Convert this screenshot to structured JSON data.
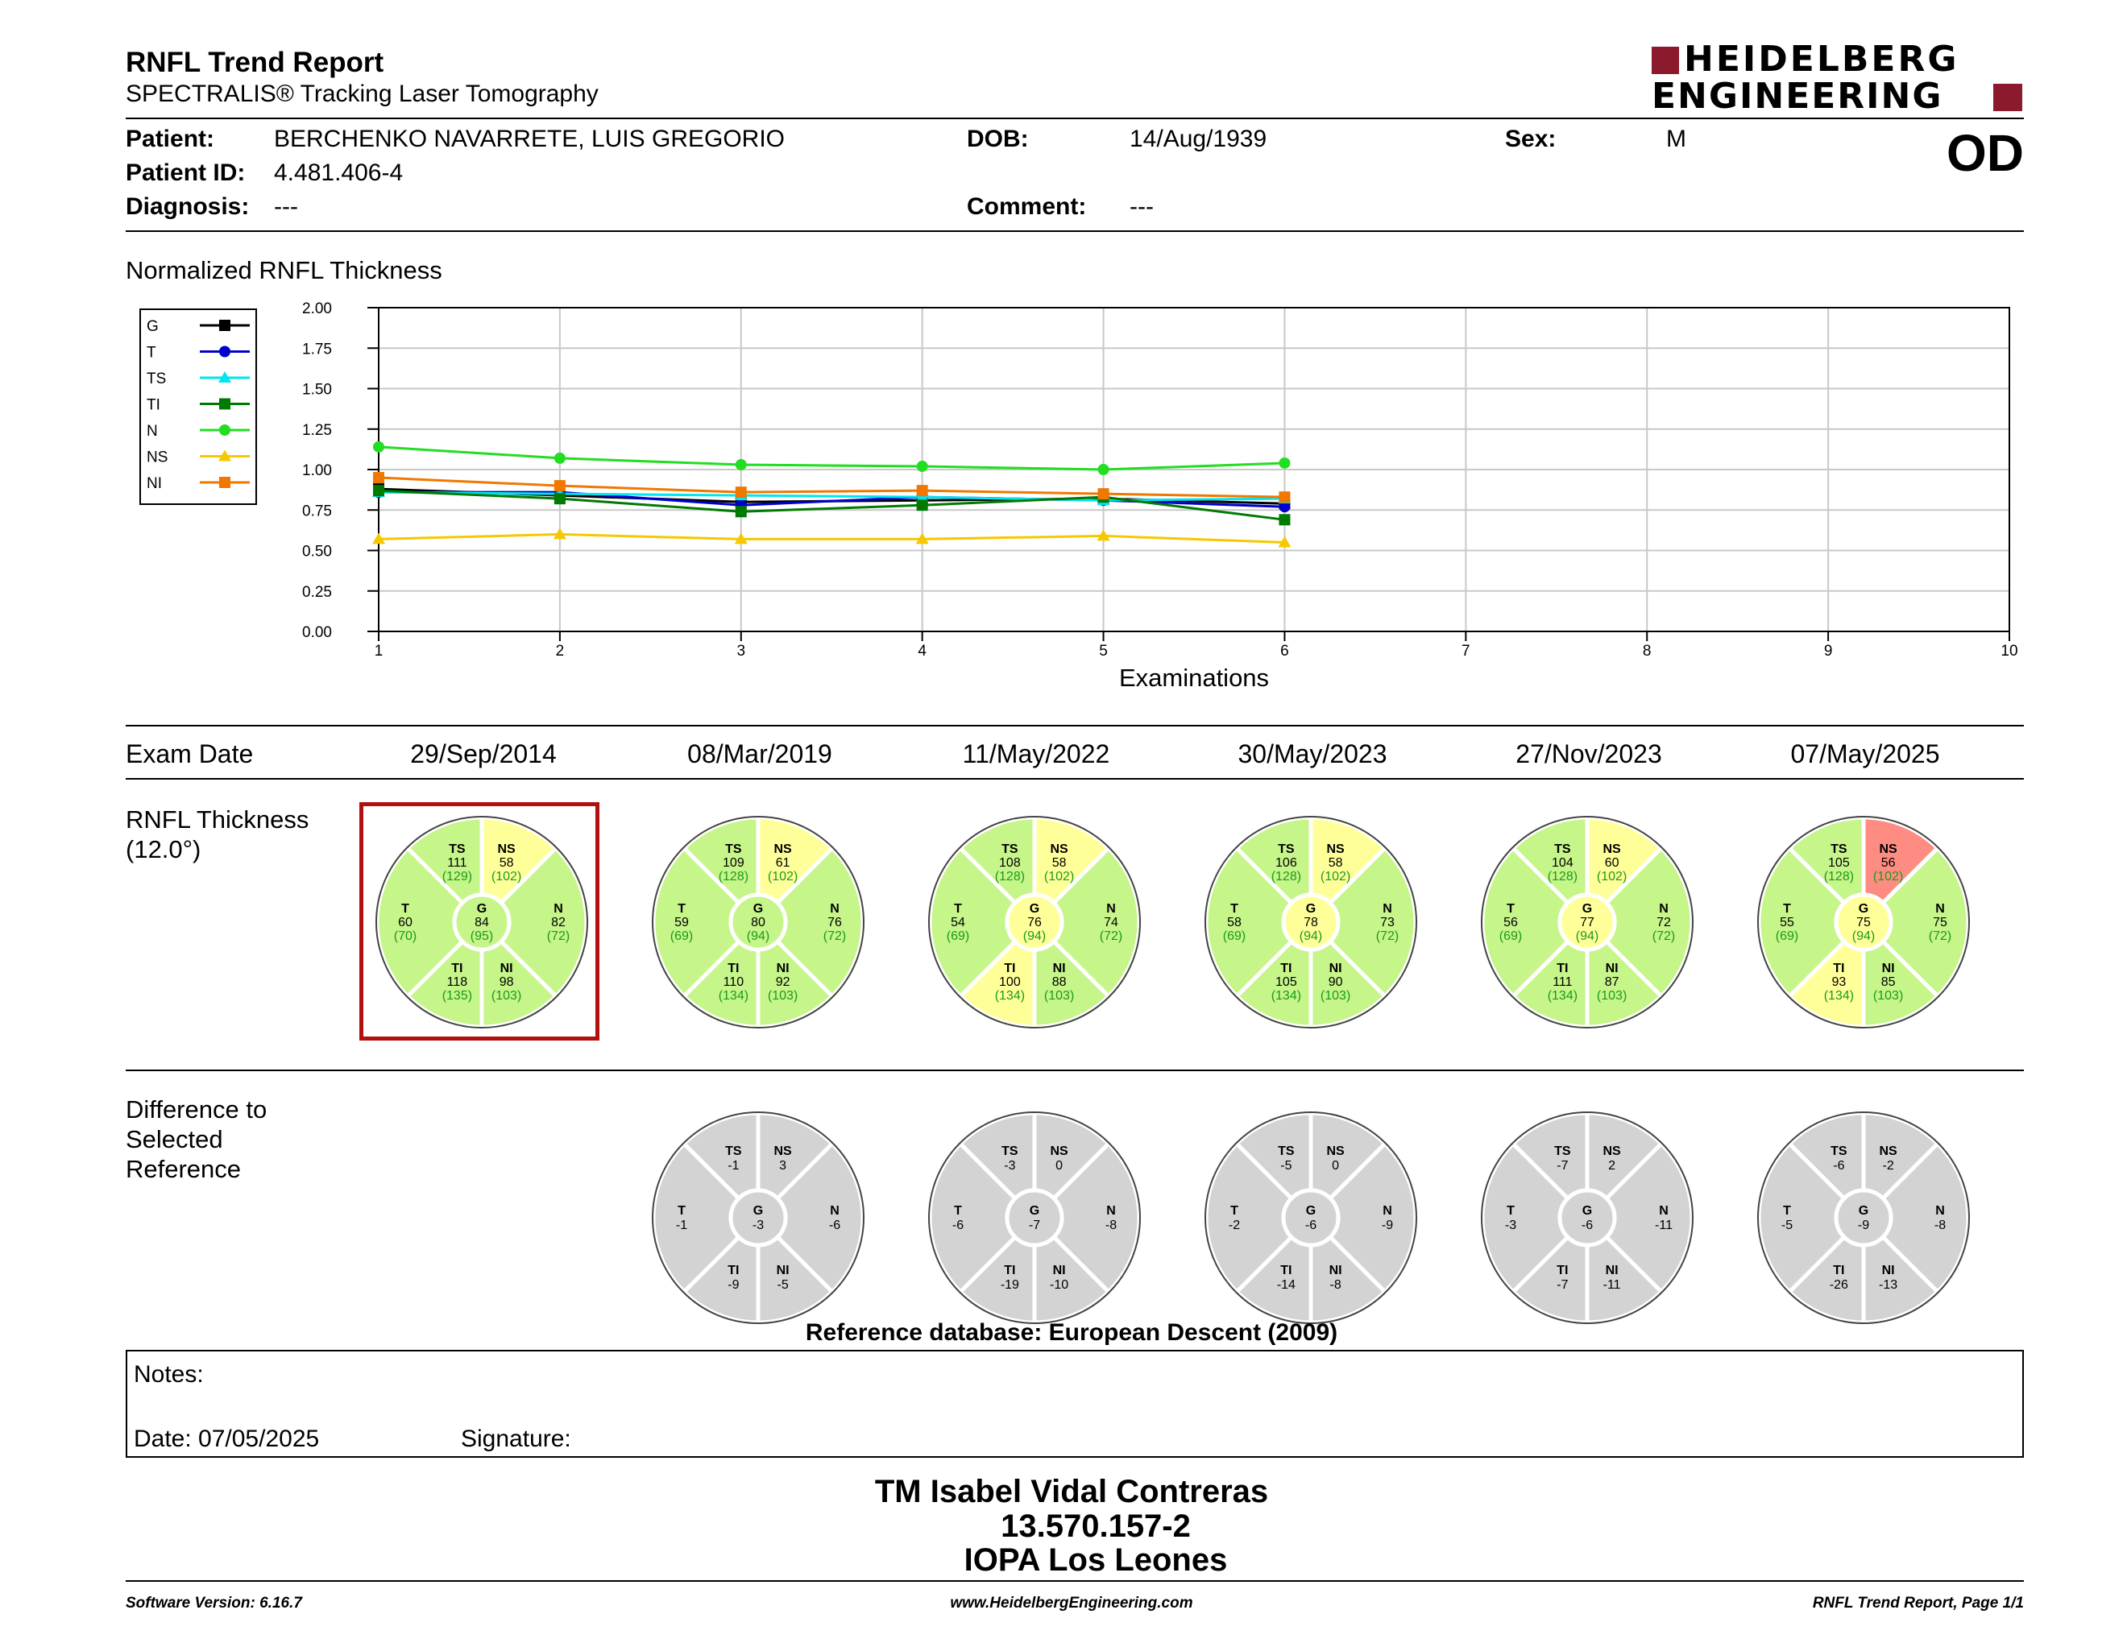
{
  "header": {
    "title": "RNFL Trend Report",
    "subtitle": "SPECTRALIS® Tracking Laser Tomography",
    "brand_line1": "HEIDELBERG",
    "brand_line2": "ENGINEERING",
    "brand_color": "#8B1A2C"
  },
  "patient": {
    "patient_label": "Patient:",
    "patient_value": "BERCHENKO NAVARRETE, LUIS GREGORIO",
    "id_label": "Patient ID:",
    "id_value": "4.481.406-4",
    "diagnosis_label": "Diagnosis:",
    "diagnosis_value": "---",
    "dob_label": "DOB:",
    "dob_value": "14/Aug/1939",
    "comment_label": "Comment:",
    "comment_value": "---",
    "sex_label": "Sex:",
    "sex_value": "M",
    "eye": "OD"
  },
  "chart_data": {
    "type": "line",
    "title": "Normalized RNFL Thickness",
    "xlabel": "Examinations",
    "ylabel": "",
    "xlim": [
      1,
      10
    ],
    "ylim": [
      0,
      2
    ],
    "x_ticks": [
      "1",
      "2",
      "3",
      "4",
      "5",
      "6",
      "7",
      "8",
      "9",
      "10"
    ],
    "y_ticks": [
      "0.00",
      "0.25",
      "0.50",
      "0.75",
      "1.00",
      "1.25",
      "1.50",
      "1.75",
      "2.00"
    ],
    "grid": true,
    "legend_position": "left",
    "x": [
      1,
      2,
      3,
      4,
      5,
      6
    ],
    "series": [
      {
        "name": "G",
        "color": "#000000",
        "marker": "square",
        "values": [
          0.88,
          0.84,
          0.8,
          0.81,
          0.82,
          0.79
        ]
      },
      {
        "name": "T",
        "color": "#0000CC",
        "marker": "circle",
        "values": [
          0.86,
          0.86,
          0.78,
          0.83,
          0.81,
          0.77
        ]
      },
      {
        "name": "TS",
        "color": "#00E5EE",
        "marker": "triangle",
        "values": [
          0.86,
          0.85,
          0.84,
          0.83,
          0.81,
          0.82
        ]
      },
      {
        "name": "TI",
        "color": "#007A00",
        "marker": "square",
        "values": [
          0.87,
          0.82,
          0.74,
          0.78,
          0.83,
          0.69
        ]
      },
      {
        "name": "N",
        "color": "#22DD22",
        "marker": "circle",
        "values": [
          1.14,
          1.07,
          1.03,
          1.02,
          1.0,
          1.04
        ]
      },
      {
        "name": "NS",
        "color": "#F5C800",
        "marker": "triangle",
        "values": [
          0.57,
          0.6,
          0.57,
          0.57,
          0.59,
          0.55
        ]
      },
      {
        "name": "NI",
        "color": "#F07800",
        "marker": "square",
        "values": [
          0.95,
          0.9,
          0.86,
          0.87,
          0.85,
          0.83
        ]
      }
    ]
  },
  "exams": {
    "label": "Exam Date",
    "dates": [
      "29/Sep/2014",
      "08/Mar/2019",
      "11/May/2022",
      "30/May/2023",
      "27/Nov/2023",
      "07/May/2025"
    ]
  },
  "rnfl": {
    "label_line1": "RNFL Thickness",
    "label_line2": "(12.0°)",
    "colors": {
      "normal": "#C6F58A",
      "borderline": "#FFFF99",
      "outside": "#FF8C82",
      "difference": "#D3D3D3"
    },
    "discs": [
      {
        "TS": [
          "111",
          "(129)",
          "g"
        ],
        "NS": [
          "58",
          "(102)",
          "y"
        ],
        "T": [
          "60",
          "(70)",
          "g"
        ],
        "G": [
          "84",
          "(95)",
          "g"
        ],
        "N": [
          "82",
          "(72)",
          "g"
        ],
        "TI": [
          "118",
          "(135)",
          "g"
        ],
        "NI": [
          "98",
          "(103)",
          "g"
        ]
      },
      {
        "TS": [
          "109",
          "(128)",
          "g"
        ],
        "NS": [
          "61",
          "(102)",
          "y"
        ],
        "T": [
          "59",
          "(69)",
          "g"
        ],
        "G": [
          "80",
          "(94)",
          "g"
        ],
        "N": [
          "76",
          "(72)",
          "g"
        ],
        "TI": [
          "110",
          "(134)",
          "g"
        ],
        "NI": [
          "92",
          "(103)",
          "g"
        ]
      },
      {
        "TS": [
          "108",
          "(128)",
          "g"
        ],
        "NS": [
          "58",
          "(102)",
          "y"
        ],
        "T": [
          "54",
          "(69)",
          "g"
        ],
        "G": [
          "76",
          "(94)",
          "y"
        ],
        "N": [
          "74",
          "(72)",
          "g"
        ],
        "TI": [
          "100",
          "(134)",
          "y"
        ],
        "NI": [
          "88",
          "(103)",
          "g"
        ]
      },
      {
        "TS": [
          "106",
          "(128)",
          "g"
        ],
        "NS": [
          "58",
          "(102)",
          "y"
        ],
        "T": [
          "58",
          "(69)",
          "g"
        ],
        "G": [
          "78",
          "(94)",
          "y"
        ],
        "N": [
          "73",
          "(72)",
          "g"
        ],
        "TI": [
          "105",
          "(134)",
          "g"
        ],
        "NI": [
          "90",
          "(103)",
          "g"
        ]
      },
      {
        "TS": [
          "104",
          "(128)",
          "g"
        ],
        "NS": [
          "60",
          "(102)",
          "y"
        ],
        "T": [
          "56",
          "(69)",
          "g"
        ],
        "G": [
          "77",
          "(94)",
          "y"
        ],
        "N": [
          "72",
          "(72)",
          "g"
        ],
        "TI": [
          "111",
          "(134)",
          "g"
        ],
        "NI": [
          "87",
          "(103)",
          "g"
        ]
      },
      {
        "TS": [
          "105",
          "(128)",
          "g"
        ],
        "NS": [
          "56",
          "(102)",
          "r"
        ],
        "T": [
          "55",
          "(69)",
          "g"
        ],
        "G": [
          "75",
          "(94)",
          "y"
        ],
        "N": [
          "75",
          "(72)",
          "g"
        ],
        "TI": [
          "93",
          "(134)",
          "y"
        ],
        "NI": [
          "85",
          "(103)",
          "g"
        ]
      }
    ]
  },
  "difference": {
    "label_line1": "Difference to",
    "label_line2": "Selected",
    "label_line3": "Reference",
    "discs": [
      {
        "TS": "-1",
        "NS": "3",
        "T": "-1",
        "G": "-3",
        "N": "-6",
        "TI": "-9",
        "NI": "-5"
      },
      {
        "TS": "-3",
        "NS": "0",
        "T": "-6",
        "G": "-7",
        "N": "-8",
        "TI": "-19",
        "NI": "-10"
      },
      {
        "TS": "-5",
        "NS": "0",
        "T": "-2",
        "G": "-6",
        "N": "-9",
        "TI": "-14",
        "NI": "-8"
      },
      {
        "TS": "-7",
        "NS": "2",
        "T": "-3",
        "G": "-6",
        "N": "-11",
        "TI": "-7",
        "NI": "-11"
      },
      {
        "TS": "-6",
        "NS": "-2",
        "T": "-5",
        "G": "-9",
        "N": "-8",
        "TI": "-26",
        "NI": "-13"
      }
    ]
  },
  "reference_db": "Reference database: European Descent (2009)",
  "notes": {
    "notes_label": "Notes:",
    "date_label": "Date: 07/05/2025",
    "signature_label": "Signature:"
  },
  "stamp": {
    "line1": "TM Isabel Vidal Contreras",
    "line2": "13.570.157-2",
    "line3": "IOPA Los Leones"
  },
  "footer": {
    "software": "Software Version: 6.16.7",
    "website": "www.HeidelbergEngineering.com",
    "page": "RNFL Trend Report, Page 1/1"
  }
}
